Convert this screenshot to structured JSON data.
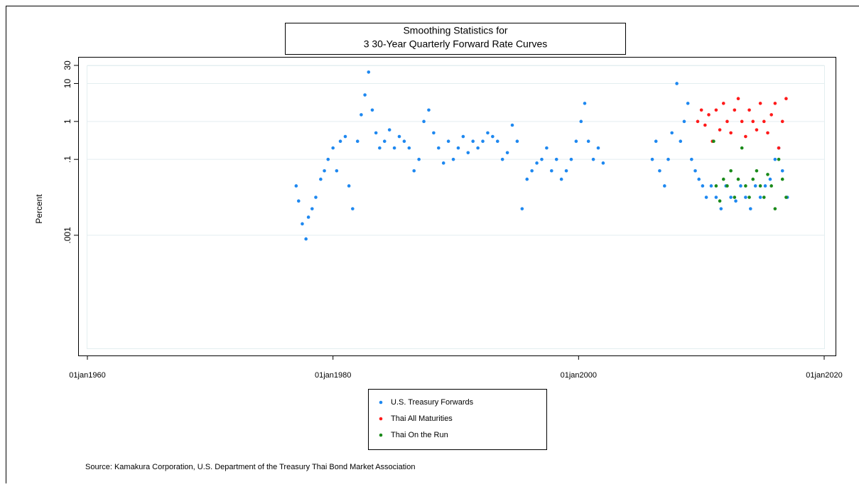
{
  "chart_data": {
    "type": "scatter",
    "title": "Smoothing Statistics for",
    "subtitle": "3 30-Year Quarterly Forward Rate Curves",
    "y_label": "Percent",
    "source": "Source: Kamakura Corporation, U.S. Department of the Treasury Thai Bond Market Association",
    "log_y": true,
    "grid": true,
    "xlim": [
      1960,
      2020
    ],
    "xticks": [
      {
        "value": 1960,
        "label": "01jan1960"
      },
      {
        "value": 1980,
        "label": "01jan1980"
      },
      {
        "value": 2000,
        "label": "01jan2000"
      },
      {
        "value": 2020,
        "label": "01jan2020"
      }
    ],
    "ylim": [
      1e-06,
      30
    ],
    "yticks": [
      {
        "value": 0.001,
        "label": ".001"
      },
      {
        "value": 0.1,
        "label": ".1"
      },
      1,
      10,
      30
    ],
    "series": [
      {
        "name": "U.S. Treasury Forwards",
        "color": "#1e88f0",
        "x": [
          1977.0,
          1977.2,
          1977.5,
          1977.8,
          1978.0,
          1978.3,
          1978.6,
          1979.0,
          1979.3,
          1979.6,
          1980.0,
          1980.3,
          1980.6,
          1981.0,
          1981.3,
          1981.6,
          1982.0,
          1982.3,
          1982.6,
          1982.9,
          1983.2,
          1983.5,
          1983.8,
          1984.2,
          1984.6,
          1985.0,
          1985.4,
          1985.8,
          1986.2,
          1986.6,
          1987.0,
          1987.4,
          1987.8,
          1988.2,
          1988.6,
          1989.0,
          1989.4,
          1989.8,
          1990.2,
          1990.6,
          1991.0,
          1991.4,
          1991.8,
          1992.2,
          1992.6,
          1993.0,
          1993.4,
          1993.8,
          1994.2,
          1994.6,
          1995.0,
          1995.4,
          1995.8,
          1996.2,
          1996.6,
          1997.0,
          1997.4,
          1997.8,
          1998.2,
          1998.6,
          1999.0,
          1999.4,
          1999.8,
          2000.2,
          2000.5,
          2000.8,
          2001.2,
          2001.6,
          2002.0,
          2006.0,
          2006.3,
          2006.6,
          2007.0,
          2007.3,
          2007.6,
          2008.0,
          2008.3,
          2008.6,
          2008.9,
          2009.2,
          2009.5,
          2009.8,
          2010.1,
          2010.4,
          2010.8,
          2011.2,
          2011.6,
          2012.0,
          2012.4,
          2012.8,
          2013.2,
          2013.6,
          2014.0,
          2014.4,
          2014.8,
          2015.2,
          2015.6,
          2016.0,
          2016.3,
          2016.6,
          2017.0
        ],
        "values": [
          0.02,
          0.008,
          0.002,
          0.0008,
          0.003,
          0.005,
          0.01,
          0.03,
          0.05,
          0.1,
          0.2,
          0.05,
          0.3,
          0.4,
          0.02,
          0.005,
          0.3,
          1.5,
          5,
          20,
          2,
          0.5,
          0.2,
          0.3,
          0.6,
          0.2,
          0.4,
          0.3,
          0.2,
          0.05,
          0.1,
          1,
          2,
          0.5,
          0.2,
          0.08,
          0.3,
          0.1,
          0.2,
          0.4,
          0.15,
          0.3,
          0.2,
          0.3,
          0.5,
          0.4,
          0.3,
          0.1,
          0.15,
          0.8,
          0.3,
          0.005,
          0.03,
          0.05,
          0.08,
          0.1,
          0.2,
          0.05,
          0.1,
          0.03,
          0.05,
          0.1,
          0.3,
          1,
          3,
          0.3,
          0.1,
          0.2,
          0.08,
          0.1,
          0.3,
          0.05,
          0.02,
          0.1,
          0.5,
          10,
          0.3,
          1,
          3,
          0.1,
          0.05,
          0.03,
          0.02,
          0.01,
          0.02,
          0.01,
          0.005,
          0.02,
          0.01,
          0.008,
          0.02,
          0.01,
          0.005,
          0.02,
          0.01,
          0.02,
          0.03,
          0.1,
          0.2,
          0.05,
          0.01
        ]
      },
      {
        "name": "Thai All Maturities",
        "color": "#ff1a1a",
        "x": [
          2009.7,
          2010.0,
          2010.3,
          2010.6,
          2010.9,
          2011.2,
          2011.5,
          2011.8,
          2012.1,
          2012.4,
          2012.7,
          2013.0,
          2013.3,
          2013.6,
          2013.9,
          2014.2,
          2014.5,
          2014.8,
          2015.1,
          2015.4,
          2015.7,
          2016.0,
          2016.3,
          2016.6,
          2016.9
        ],
        "values": [
          1,
          2,
          0.8,
          1.5,
          0.3,
          2,
          0.6,
          3,
          1,
          0.5,
          2,
          4,
          1,
          0.4,
          2,
          1,
          0.6,
          3,
          1,
          0.5,
          1.5,
          3,
          0.2,
          1,
          4
        ]
      },
      {
        "name": "Thai On the Run",
        "color": "#1a8a1a",
        "x": [
          2011.0,
          2011.2,
          2011.5,
          2011.8,
          2012.1,
          2012.4,
          2012.7,
          2013.0,
          2013.3,
          2013.6,
          2013.9,
          2014.2,
          2014.5,
          2014.8,
          2015.1,
          2015.4,
          2015.7,
          2016.0,
          2016.3,
          2016.6,
          2016.9
        ],
        "values": [
          0.3,
          0.02,
          0.008,
          0.03,
          0.02,
          0.05,
          0.01,
          0.03,
          0.2,
          0.02,
          0.01,
          0.03,
          0.05,
          0.02,
          0.01,
          0.04,
          0.02,
          0.005,
          0.1,
          0.03,
          0.01
        ]
      }
    ]
  }
}
